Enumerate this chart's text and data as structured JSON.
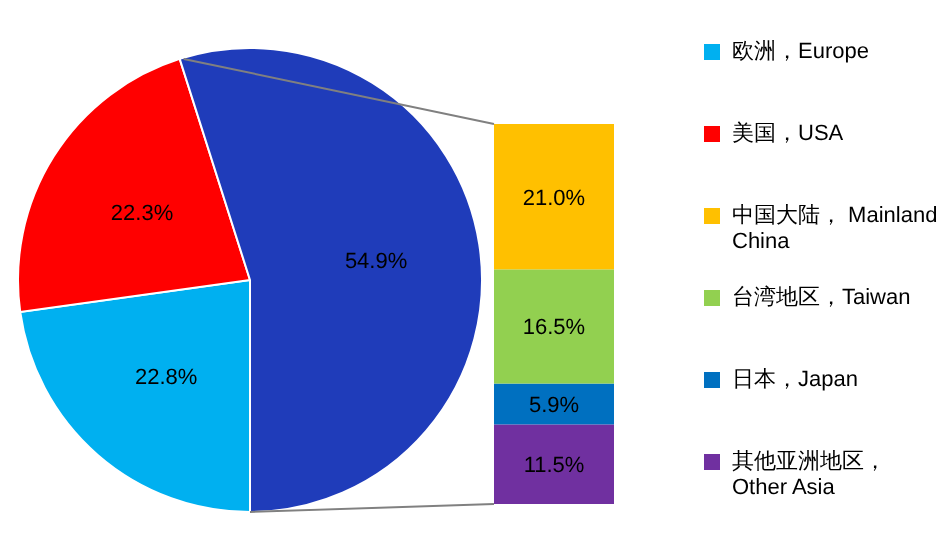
{
  "chart_data": [
    {
      "type": "pie",
      "categories": [
        "欧洲，Europe",
        "美国，USA",
        null
      ],
      "values": [
        22.8,
        22.3,
        54.9
      ],
      "value_labels": [
        "22.8%",
        "22.3%",
        "54.9%"
      ],
      "colors": [
        "#00b0f0",
        "#ff0000",
        "#1f3cba"
      ],
      "legend": "right"
    },
    {
      "type": "bar",
      "stacked": true,
      "categories": [
        null
      ],
      "legend": "right",
      "series": [
        {
          "name": "其他亚洲地区，Other Asia",
          "color": "#7030a0",
          "values": [
            11.5
          ],
          "value_labels": [
            "11.5%"
          ]
        },
        {
          "name": "日本，Japan",
          "color": "#0070c0",
          "values": [
            5.9
          ],
          "value_labels": [
            "5.9%"
          ]
        },
        {
          "name": "台湾地区，Taiwan",
          "color": "#92d050",
          "values": [
            16.5
          ],
          "value_labels": [
            "16.5%"
          ]
        },
        {
          "name": "中国大陆， Mainland China",
          "color": "#ffc000",
          "values": [
            21.0
          ],
          "value_labels": [
            "21.0%"
          ]
        }
      ]
    }
  ]
}
